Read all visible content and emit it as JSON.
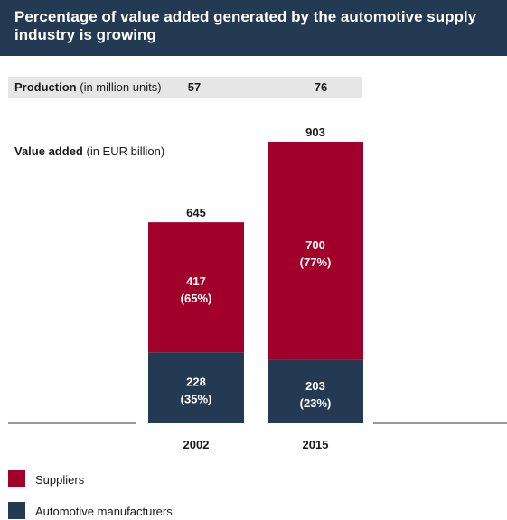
{
  "title": "Percentage of value added generated by the automotive supply industry is growing",
  "production": {
    "label_bold": "Production",
    "label_unit": "(in million units)",
    "values": [
      "57",
      "76"
    ]
  },
  "value_added": {
    "label_bold": "Value added",
    "label_unit": "(in EUR billion)"
  },
  "legend": {
    "suppliers": "Suppliers",
    "manufacturers": "Automotive manufacturers"
  },
  "colors": {
    "suppliers": "#a1002b",
    "manufacturers": "#243a52",
    "title_bg": "#243a52",
    "production_row_bg": "#e6e6e6"
  },
  "chart_data": {
    "type": "bar",
    "stacked": true,
    "categories": [
      "2002",
      "2015"
    ],
    "series": [
      {
        "name": "Automotive manufacturers",
        "values": [
          228,
          203
        ],
        "percent_labels": [
          "(35%)",
          "(23%)"
        ]
      },
      {
        "name": "Suppliers",
        "values": [
          417,
          700
        ],
        "percent_labels": [
          "(65%)",
          "(77%)"
        ]
      }
    ],
    "totals": [
      645,
      903
    ],
    "production": [
      57,
      76
    ],
    "ylim": [
      0,
      903
    ],
    "grid": false,
    "legend_position": "bottom-left"
  }
}
